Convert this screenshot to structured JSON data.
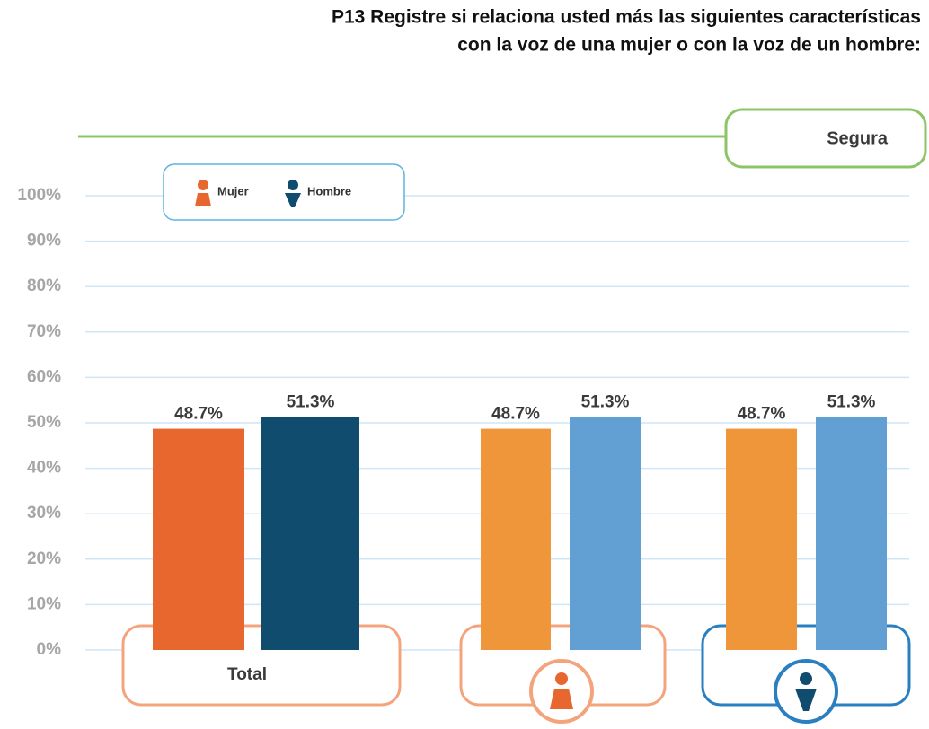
{
  "chart_data": {
    "type": "bar",
    "title": [
      "P13 Registre si relaciona usted más las siguientes características",
      "con la voz de una mujer o con la voz de un hombre:"
    ],
    "panel_label": "Segura",
    "categories": [
      "Total",
      null,
      null
    ],
    "series": [
      {
        "name": "Mujer",
        "color": "#e8672f",
        "colors": [
          "#e8672f",
          "#f0963a",
          "#f0963a"
        ],
        "values": [
          48.7,
          48.7,
          48.7
        ],
        "value_labels": [
          "48.7%",
          "48.7%",
          "48.7%"
        ]
      },
      {
        "name": "Hombre",
        "color": "#0f4c6e",
        "colors": [
          "#0f4c6e",
          "#62a0d4",
          "#62a0d4"
        ],
        "values": [
          51.3,
          51.3,
          51.3
        ],
        "value_labels": [
          "51.3%",
          "51.3%",
          "51.3%"
        ]
      }
    ],
    "ylim": [
      0,
      100
    ],
    "yticks": [
      {
        "value": 0,
        "label": "0%"
      },
      {
        "value": 10,
        "label": "10%"
      },
      {
        "value": 20,
        "label": "20%"
      },
      {
        "value": 30,
        "label": "30%"
      },
      {
        "value": 40,
        "label": "40%"
      },
      {
        "value": 50,
        "label": "50%"
      },
      {
        "value": 60,
        "label": "60%"
      },
      {
        "value": 70,
        "label": "70%"
      },
      {
        "value": 80,
        "label": "80%"
      },
      {
        "value": 90,
        "label": "90%"
      },
      {
        "value": 100,
        "label": "100%"
      }
    ],
    "grid": true,
    "legend": "top-left"
  }
}
